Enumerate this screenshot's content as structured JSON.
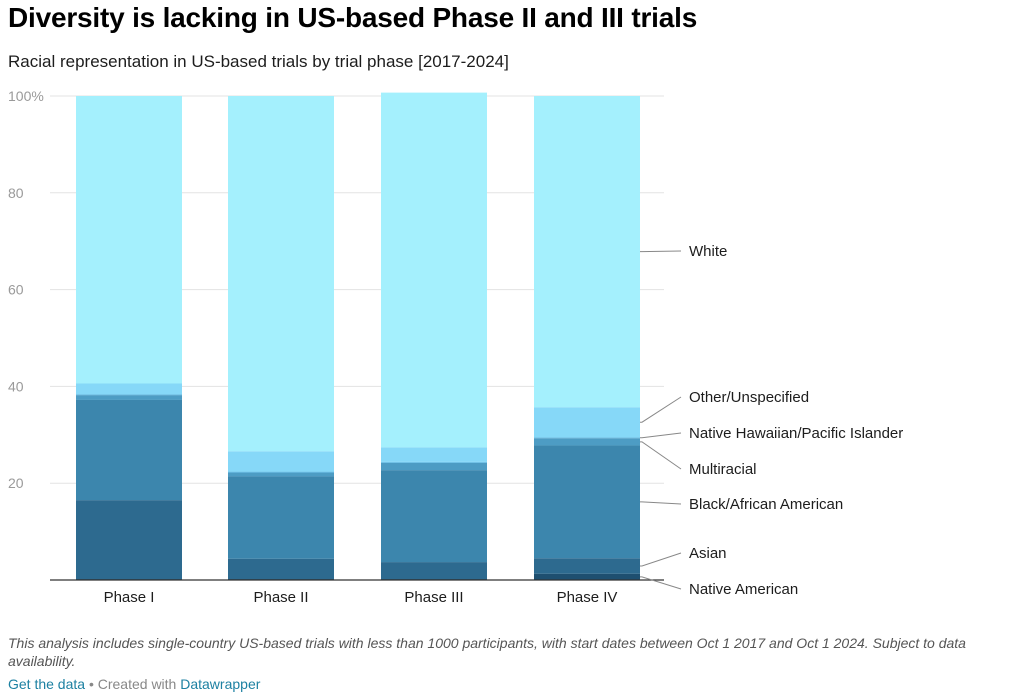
{
  "header": {
    "title": "Diversity is lacking in US-based Phase II and III trials",
    "subtitle": "Racial representation in US-based trials by trial phase [2017-2024]"
  },
  "notes": "This analysis includes single-country US-based trials with less than 1000 participants, with start dates between Oct 1 2017 and Oct 1 2024. Subject to data availability.",
  "footer": {
    "get_data": "Get the data",
    "separator": " • Created with ",
    "tool": "Datawrapper"
  },
  "colors": {
    "native_american": "#1e4f70",
    "asian": "#2d6a8f",
    "black": "#3c86ad",
    "multiracial": "#4d9cc4",
    "nhpi": "#65bde6",
    "other": "#86d8f8",
    "white": "#a4f0fd",
    "grid": "#e3e3e3",
    "axis": "#333333",
    "connector": "#888888"
  },
  "chart_data": {
    "type": "bar",
    "stacked": true,
    "title": "Diversity is lacking in US-based Phase II and III trials",
    "subtitle": "Racial representation in US-based trials by trial phase [2017-2024]",
    "xlabel": "",
    "ylabel": "",
    "ylim": [
      0,
      100
    ],
    "yticks": [
      20,
      40,
      60,
      80,
      100
    ],
    "ytick_labels": [
      "20",
      "40",
      "60",
      "80",
      "100%"
    ],
    "grid": true,
    "legend": "right, direct labels",
    "categories": [
      "Phase I",
      "Phase II",
      "Phase III",
      "Phase IV"
    ],
    "series": [
      {
        "name": "Native American",
        "color_key": "native_american",
        "values": [
          0.2,
          0.2,
          0.2,
          1.3
        ]
      },
      {
        "name": "Asian",
        "color_key": "asian",
        "values": [
          16.3,
          4.2,
          3.5,
          3.2
        ]
      },
      {
        "name": "Black/African American",
        "color_key": "black",
        "values": [
          20.7,
          17.0,
          19.0,
          23.3
        ]
      },
      {
        "name": "Multiracial",
        "color_key": "multiracial",
        "values": [
          1.0,
          0.8,
          1.5,
          1.5
        ]
      },
      {
        "name": "Native Hawaiian/Pacific Islander",
        "color_key": "nhpi",
        "values": [
          0.2,
          0.2,
          0.2,
          0.2
        ]
      },
      {
        "name": "Other/Unspecified",
        "color_key": "other",
        "values": [
          2.2,
          4.2,
          3.0,
          6.2
        ]
      },
      {
        "name": "White",
        "color_key": "white",
        "values": [
          59.4,
          73.4,
          73.3,
          64.3
        ]
      }
    ]
  }
}
